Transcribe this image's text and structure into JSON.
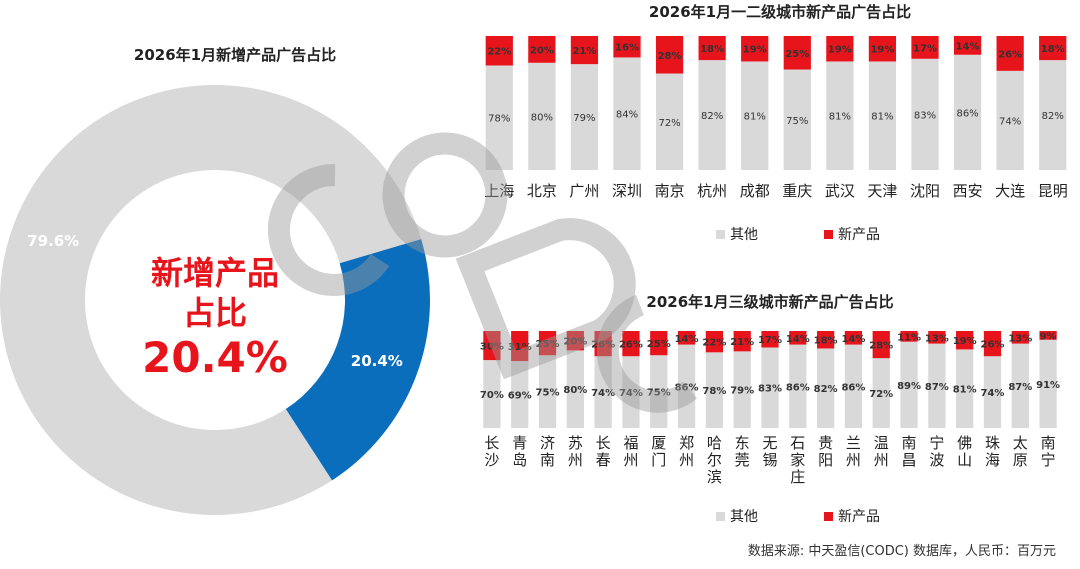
{
  "chart_data": [
    {
      "type": "pie",
      "title": "2026年1月新增产品广告占比",
      "slices": [
        {
          "label": "其他",
          "value": 79.6,
          "display": "79.6%",
          "color": "#d9d9d9"
        },
        {
          "label": "新产品",
          "value": 20.4,
          "display": "20.4%",
          "color": "#0a6ebd"
        }
      ],
      "center_text": [
        "新增产品",
        "占比",
        "20.4%"
      ],
      "center_color": "#e8141c"
    },
    {
      "type": "bar",
      "stacked": true,
      "title": "2026年1月一二级城市新产品广告占比",
      "categories": [
        "上海",
        "北京",
        "广州",
        "深圳",
        "南京",
        "杭州",
        "成都",
        "重庆",
        "武汉",
        "天津",
        "沈阳",
        "西安",
        "大连",
        "昆明"
      ],
      "series": [
        {
          "name": "其他",
          "color": "#d9d9d9",
          "values": [
            78,
            80,
            79,
            84,
            72,
            82,
            81,
            75,
            81,
            81,
            83,
            86,
            74,
            82
          ]
        },
        {
          "name": "新产品",
          "color": "#e8141c",
          "values": [
            22,
            20,
            21,
            16,
            28,
            18,
            19,
            25,
            19,
            19,
            17,
            14,
            26,
            18
          ]
        }
      ],
      "ylim": [
        0,
        100
      ],
      "legend": "bottom"
    },
    {
      "type": "bar",
      "stacked": true,
      "title": "2026年1月三级城市新产品广告占比",
      "categories": [
        "长沙",
        "青岛",
        "济南",
        "苏州",
        "长春",
        "福州",
        "厦门",
        "郑州",
        "哈尔滨",
        "东莞",
        "无锡",
        "石家庄",
        "贵阳",
        "兰州",
        "温州",
        "南昌",
        "宁波",
        "佛山",
        "珠海",
        "太原",
        "南宁"
      ],
      "series": [
        {
          "name": "其他",
          "color": "#d9d9d9",
          "values": [
            70,
            69,
            75,
            80,
            74,
            74,
            75,
            86,
            78,
            79,
            83,
            86,
            82,
            86,
            72,
            89,
            87,
            81,
            74,
            87,
            91
          ]
        },
        {
          "name": "新产品",
          "color": "#e8141c",
          "values": [
            30,
            31,
            25,
            20,
            26,
            26,
            25,
            14,
            22,
            21,
            17,
            14,
            18,
            14,
            28,
            11,
            13,
            19,
            26,
            13,
            9
          ]
        }
      ],
      "ylim": [
        0,
        100
      ],
      "legend": "bottom"
    }
  ],
  "source_note": "数据来源: 中天盈信(CODC) 数据库，人民币：百万元"
}
